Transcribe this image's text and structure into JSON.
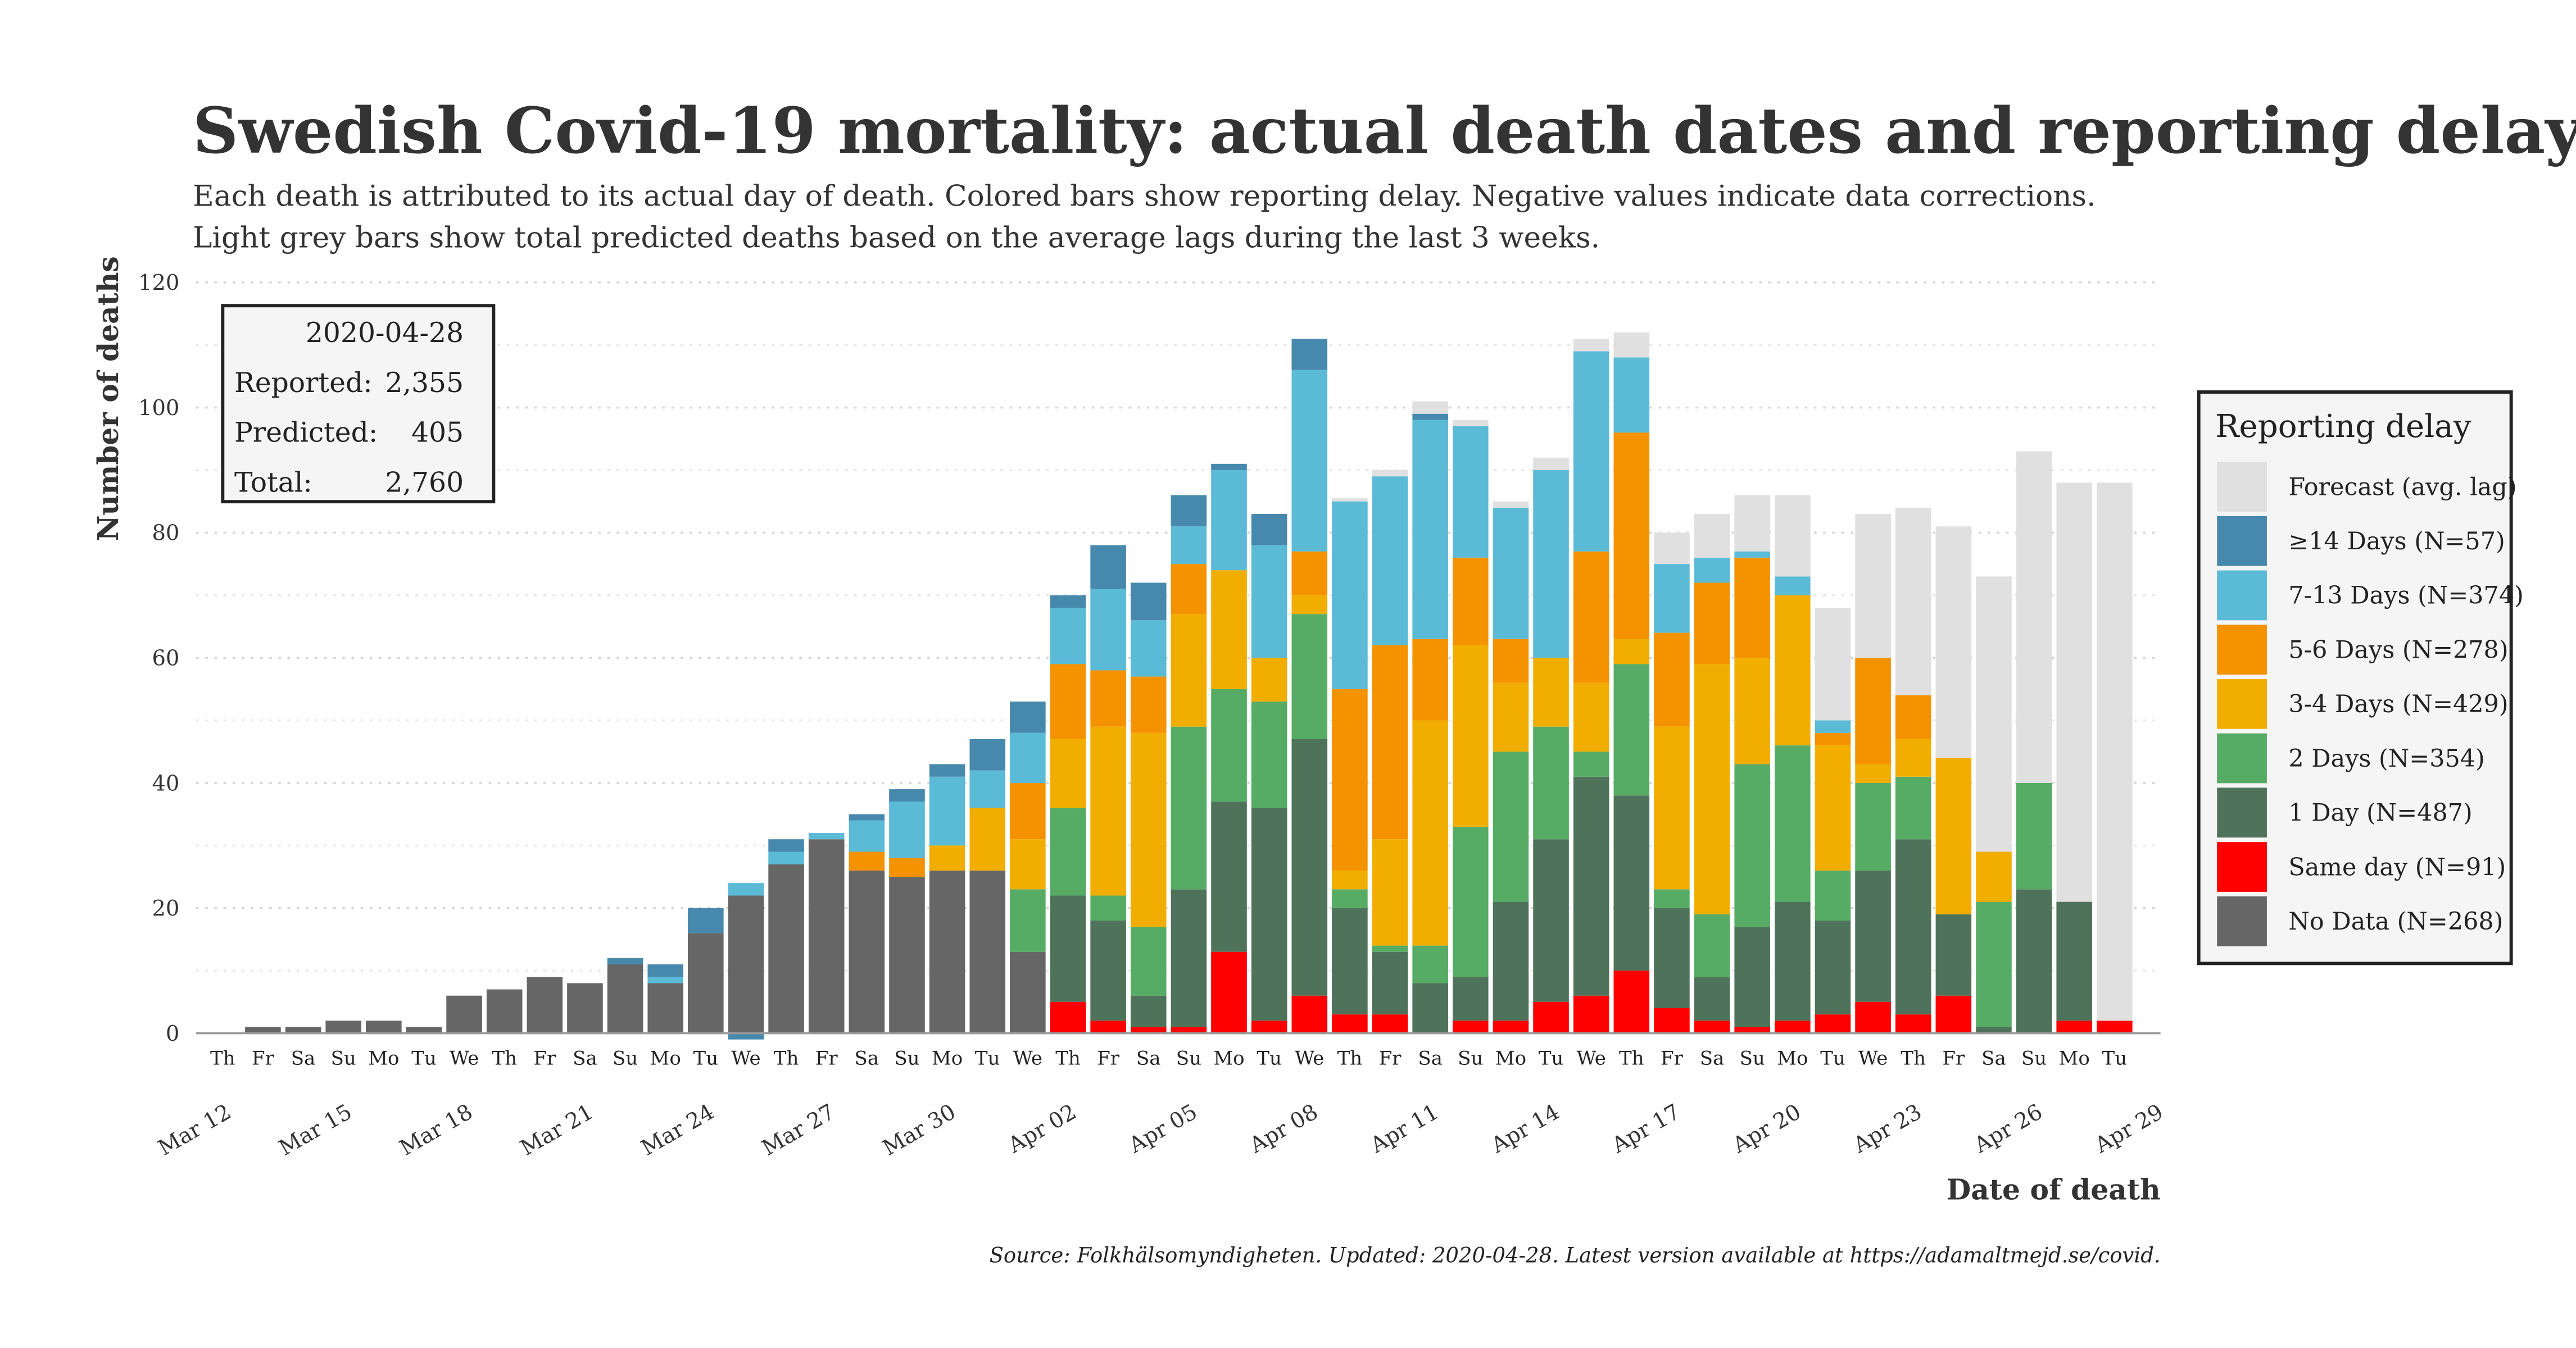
{
  "title": "Swedish Covid-19 mortality: actual death dates and reporting delay",
  "subtitle_lines": [
    "Each death is attributed to its actual day of death. Colored bars show reporting delay. Negative values indicate data corrections.",
    "Light grey bars show total predicted deaths based on the average lags during the last 3 weeks."
  ],
  "source": "Source: Folkhälsomyndigheten. Updated: 2020-04-28. Latest version available at https://adamaltmejd.se/covid.",
  "summary_box": {
    "date": "2020-04-28",
    "rows": [
      {
        "label": "Reported:",
        "value": "2,355"
      },
      {
        "label": "Predicted:",
        "value": "405"
      },
      {
        "label": "Total:",
        "value": "2,760"
      }
    ]
  },
  "chart_data": {
    "type": "bar",
    "stacked": true,
    "xlabel": "Date of death",
    "ylabel": "Number of deaths",
    "ylim": [
      0,
      120
    ],
    "yticks": [
      0,
      20,
      40,
      60,
      80,
      100,
      120
    ],
    "grid": true,
    "legend_title": "Reporting delay",
    "legend_position": "right",
    "series": [
      {
        "key": "nodata",
        "name": "No Data (N=268)",
        "color": "#666666"
      },
      {
        "key": "same",
        "name": "Same day (N=91)",
        "color": "#ff0000"
      },
      {
        "key": "d1",
        "name": "1 Day (N=487)",
        "color": "#4f735a"
      },
      {
        "key": "d2",
        "name": "2 Days (N=354)",
        "color": "#56ac64"
      },
      {
        "key": "d34",
        "name": "3-4 Days (N=429)",
        "color": "#f2ae00"
      },
      {
        "key": "d56",
        "name": "5-6 Days (N=278)",
        "color": "#f49200"
      },
      {
        "key": "d713",
        "name": "7-13 Days (N=374)",
        "color": "#5bbbd6"
      },
      {
        "key": "d14",
        "name": "≥14 Days (N=57)",
        "color": "#4789ad"
      },
      {
        "key": "forecast",
        "name": "Forecast (avg. lag)",
        "color": "#e0e0e0"
      }
    ],
    "legend_order": [
      "forecast",
      "d14",
      "d713",
      "d56",
      "d34",
      "d2",
      "d1",
      "same",
      "nodata"
    ],
    "date_labels": [
      "Mar 12",
      "Mar 15",
      "Mar 18",
      "Mar 21",
      "Mar 24",
      "Mar 27",
      "Mar 30",
      "Apr 02",
      "Apr 05",
      "Apr 08",
      "Apr 11",
      "Apr 14",
      "Apr 17",
      "Apr 20",
      "Apr 23",
      "Apr 26",
      "Apr 29"
    ],
    "days": [
      {
        "date": "2020-03-12",
        "wd": "Th",
        "red": false,
        "v": {}
      },
      {
        "date": "2020-03-13",
        "wd": "Fr",
        "red": false,
        "v": {
          "nodata": 1
        }
      },
      {
        "date": "2020-03-14",
        "wd": "Sa",
        "red": true,
        "v": {
          "nodata": 1
        }
      },
      {
        "date": "2020-03-15",
        "wd": "Su",
        "red": true,
        "v": {
          "nodata": 2
        }
      },
      {
        "date": "2020-03-16",
        "wd": "Mo",
        "red": false,
        "v": {
          "nodata": 2
        }
      },
      {
        "date": "2020-03-17",
        "wd": "Tu",
        "red": false,
        "v": {
          "nodata": 1
        }
      },
      {
        "date": "2020-03-18",
        "wd": "We",
        "red": false,
        "v": {
          "nodata": 6
        }
      },
      {
        "date": "2020-03-19",
        "wd": "Th",
        "red": false,
        "v": {
          "nodata": 7
        }
      },
      {
        "date": "2020-03-20",
        "wd": "Fr",
        "red": false,
        "v": {
          "nodata": 9
        }
      },
      {
        "date": "2020-03-21",
        "wd": "Sa",
        "red": true,
        "v": {
          "nodata": 8
        }
      },
      {
        "date": "2020-03-22",
        "wd": "Su",
        "red": true,
        "v": {
          "nodata": 11,
          "d14": 1
        }
      },
      {
        "date": "2020-03-23",
        "wd": "Mo",
        "red": false,
        "v": {
          "nodata": 8,
          "d713": 1,
          "d14": 2
        }
      },
      {
        "date": "2020-03-24",
        "wd": "Tu",
        "red": false,
        "v": {
          "nodata": 16,
          "d14": 4
        }
      },
      {
        "date": "2020-03-25",
        "wd": "We",
        "red": false,
        "v": {
          "nodata": 22,
          "d713": 2,
          "d14": -1
        }
      },
      {
        "date": "2020-03-26",
        "wd": "Th",
        "red": false,
        "v": {
          "nodata": 27,
          "d713": 2,
          "d14": 2
        }
      },
      {
        "date": "2020-03-27",
        "wd": "Fr",
        "red": false,
        "v": {
          "nodata": 31,
          "d713": 1
        }
      },
      {
        "date": "2020-03-28",
        "wd": "Sa",
        "red": true,
        "v": {
          "nodata": 26,
          "d56": 3,
          "d713": 5,
          "d14": 1
        }
      },
      {
        "date": "2020-03-29",
        "wd": "Su",
        "red": true,
        "v": {
          "nodata": 25,
          "d56": 3,
          "d713": 9,
          "d14": 2
        }
      },
      {
        "date": "2020-03-30",
        "wd": "Mo",
        "red": false,
        "v": {
          "nodata": 26,
          "d34": 4,
          "d713": 11,
          "d14": 2
        }
      },
      {
        "date": "2020-03-31",
        "wd": "Tu",
        "red": false,
        "v": {
          "nodata": 26,
          "d34": 10,
          "d713": 6,
          "d14": 5
        }
      },
      {
        "date": "2020-04-01",
        "wd": "We",
        "red": false,
        "v": {
          "nodata": 13,
          "d2": 10,
          "d34": 8,
          "d56": 9,
          "d713": 8,
          "d14": 5
        }
      },
      {
        "date": "2020-04-02",
        "wd": "Th",
        "red": false,
        "v": {
          "same": 5,
          "d1": 17,
          "d2": 14,
          "d34": 11,
          "d56": 12,
          "d713": 9,
          "d14": 2
        }
      },
      {
        "date": "2020-04-03",
        "wd": "Fr",
        "red": false,
        "v": {
          "same": 2,
          "d1": 16,
          "d2": 4,
          "d34": 27,
          "d56": 9,
          "d713": 13,
          "d14": 7
        }
      },
      {
        "date": "2020-04-04",
        "wd": "Sa",
        "red": true,
        "v": {
          "same": 1,
          "d1": 5,
          "d2": 11,
          "d34": 31,
          "d56": 9,
          "d713": 9,
          "d14": 6
        }
      },
      {
        "date": "2020-04-05",
        "wd": "Su",
        "red": true,
        "v": {
          "same": 1,
          "d1": 22,
          "d2": 26,
          "d34": 18,
          "d56": 8,
          "d713": 6,
          "d14": 5
        }
      },
      {
        "date": "2020-04-06",
        "wd": "Mo",
        "red": false,
        "v": {
          "same": 13,
          "d1": 24,
          "d2": 18,
          "d34": 19,
          "d713": 16,
          "d14": 1
        }
      },
      {
        "date": "2020-04-07",
        "wd": "Tu",
        "red": false,
        "v": {
          "same": 2,
          "d1": 34,
          "d2": 17,
          "d34": 7,
          "d713": 18,
          "d14": 5
        }
      },
      {
        "date": "2020-04-08",
        "wd": "We",
        "red": false,
        "v": {
          "same": 6,
          "d1": 41,
          "d2": 20,
          "d34": 3,
          "d56": 7,
          "d713": 29,
          "d14": 5
        }
      },
      {
        "date": "2020-04-09",
        "wd": "Th",
        "red": false,
        "v": {
          "same": 3,
          "d1": 17,
          "d2": 3,
          "d34": 3,
          "d56": 29,
          "d713": 30,
          "forecast": 0.5
        }
      },
      {
        "date": "2020-04-10",
        "wd": "Fr",
        "red": true,
        "v": {
          "same": 3,
          "d1": 10,
          "d2": 1,
          "d34": 17,
          "d56": 31,
          "d713": 27,
          "forecast": 1
        }
      },
      {
        "date": "2020-04-11",
        "wd": "Sa",
        "red": true,
        "v": {
          "d1": 8,
          "d2": 6,
          "d34": 36,
          "d56": 13,
          "d713": 35,
          "d14": 1,
          "forecast": 2
        }
      },
      {
        "date": "2020-04-12",
        "wd": "Su",
        "red": true,
        "v": {
          "same": 2,
          "d1": 7,
          "d2": 24,
          "d34": 29,
          "d56": 14,
          "d713": 21,
          "forecast": 1
        }
      },
      {
        "date": "2020-04-13",
        "wd": "Mo",
        "red": true,
        "v": {
          "same": 2,
          "d1": 19,
          "d2": 24,
          "d34": 11,
          "d56": 7,
          "d713": 21,
          "forecast": 1
        }
      },
      {
        "date": "2020-04-14",
        "wd": "Tu",
        "red": false,
        "v": {
          "same": 5,
          "d1": 26,
          "d2": 18,
          "d34": 11,
          "d713": 30,
          "forecast": 2
        }
      },
      {
        "date": "2020-04-15",
        "wd": "We",
        "red": false,
        "v": {
          "same": 6,
          "d1": 35,
          "d2": 4,
          "d34": 11,
          "d56": 21,
          "d713": 32,
          "forecast": 2
        }
      },
      {
        "date": "2020-04-16",
        "wd": "Th",
        "red": false,
        "v": {
          "same": 10,
          "d1": 28,
          "d2": 21,
          "d34": 4,
          "d56": 33,
          "d713": 12,
          "forecast": 4
        }
      },
      {
        "date": "2020-04-17",
        "wd": "Fr",
        "red": false,
        "v": {
          "same": 4,
          "d1": 16,
          "d2": 3,
          "d34": 26,
          "d56": 15,
          "d713": 11,
          "forecast": 5
        }
      },
      {
        "date": "2020-04-18",
        "wd": "Sa",
        "red": true,
        "v": {
          "same": 2,
          "d1": 7,
          "d2": 10,
          "d34": 40,
          "d56": 13,
          "d713": 4,
          "forecast": 7
        }
      },
      {
        "date": "2020-04-19",
        "wd": "Su",
        "red": true,
        "v": {
          "same": 1,
          "d1": 16,
          "d2": 26,
          "d34": 17,
          "d56": 16,
          "d713": 1,
          "forecast": 9
        }
      },
      {
        "date": "2020-04-20",
        "wd": "Mo",
        "red": false,
        "v": {
          "same": 2,
          "d1": 19,
          "d2": 25,
          "d34": 24,
          "d713": 3,
          "forecast": 13
        }
      },
      {
        "date": "2020-04-21",
        "wd": "Tu",
        "red": false,
        "v": {
          "same": 3,
          "d1": 15,
          "d2": 8,
          "d34": 20,
          "d56": 2,
          "d713": 2,
          "forecast": 18
        }
      },
      {
        "date": "2020-04-22",
        "wd": "We",
        "red": false,
        "v": {
          "same": 5,
          "d1": 21,
          "d2": 14,
          "d34": 3,
          "d56": 17,
          "forecast": 23
        }
      },
      {
        "date": "2020-04-23",
        "wd": "Th",
        "red": false,
        "v": {
          "same": 3,
          "d1": 28,
          "d2": 10,
          "d34": 6,
          "d56": 7,
          "forecast": 30
        }
      },
      {
        "date": "2020-04-24",
        "wd": "Fr",
        "red": false,
        "v": {
          "same": 6,
          "d1": 13,
          "d34": 25,
          "forecast": 37
        }
      },
      {
        "date": "2020-04-25",
        "wd": "Sa",
        "red": true,
        "v": {
          "d1": 1,
          "d2": 20,
          "d34": 8,
          "forecast": 44
        }
      },
      {
        "date": "2020-04-26",
        "wd": "Su",
        "red": true,
        "v": {
          "d1": 23,
          "d2": 17,
          "forecast": 53
        }
      },
      {
        "date": "2020-04-27",
        "wd": "Mo",
        "red": false,
        "v": {
          "same": 2,
          "d1": 19,
          "forecast": 67
        }
      },
      {
        "date": "2020-04-28",
        "wd": "Tu",
        "red": false,
        "v": {
          "same": 2,
          "forecast": 86
        }
      }
    ]
  }
}
